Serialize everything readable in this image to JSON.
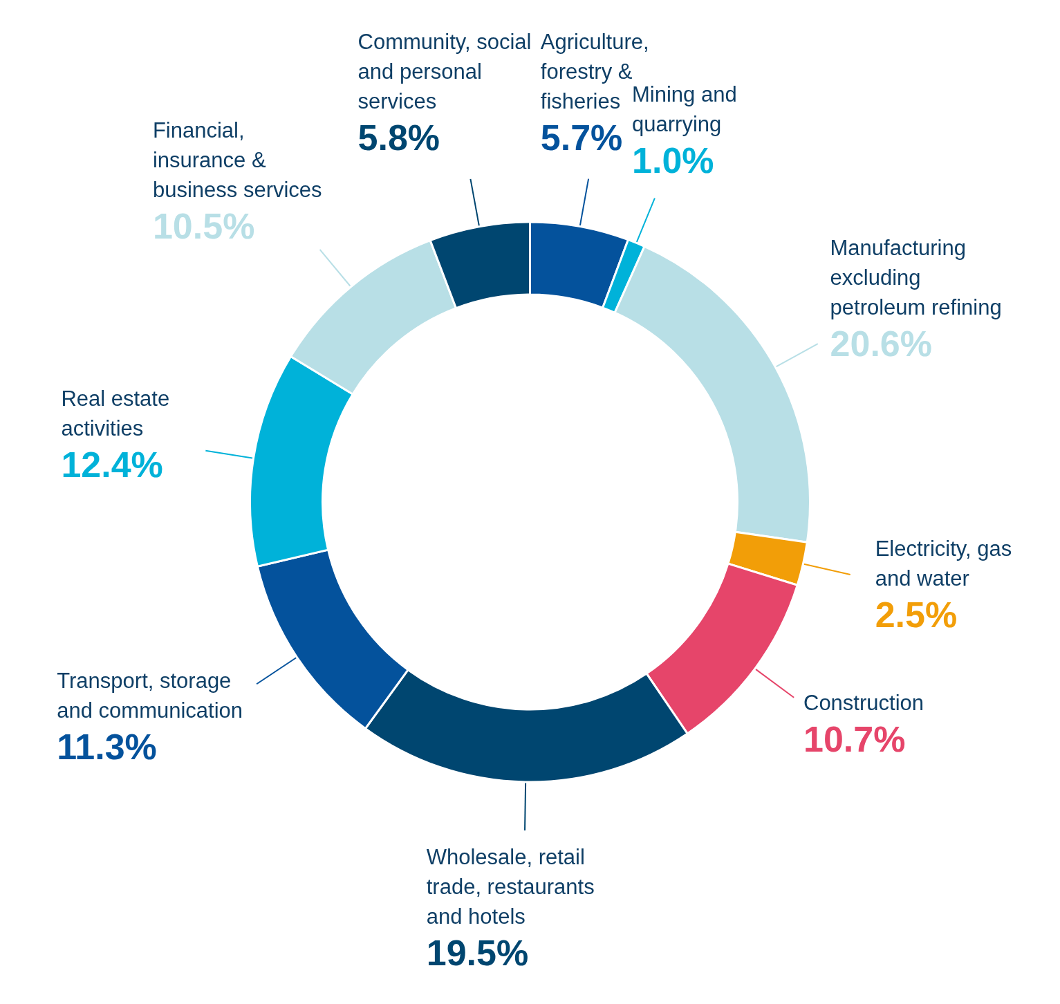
{
  "chart_data": {
    "type": "donut",
    "categories": [
      "Agriculture, forestry & fisheries",
      "Mining and quarrying",
      "Manufacturing excluding petroleum refining",
      "Electricity, gas and water",
      "Construction",
      "Wholesale, retail trade, restaurants and hotels",
      "Transport, storage and communication",
      "Real estate activities",
      "Financial, insurance & business services",
      "Community, social and personal services"
    ],
    "values": [
      5.7,
      1.0,
      20.6,
      2.5,
      10.7,
      19.5,
      11.3,
      12.4,
      10.5,
      5.8
    ],
    "value_labels": [
      "5.7%",
      "1.0%",
      "20.6%",
      "2.5%",
      "10.7%",
      "19.5%",
      "11.3%",
      "12.4%",
      "10.5%",
      "5.8%"
    ],
    "colors": [
      "#04529c",
      "#00b2d9",
      "#b8dfe6",
      "#f29e08",
      "#e6456a",
      "#004670",
      "#04529c",
      "#00b2d9",
      "#b8dfe6",
      "#004670"
    ],
    "data_labels": true
  }
}
